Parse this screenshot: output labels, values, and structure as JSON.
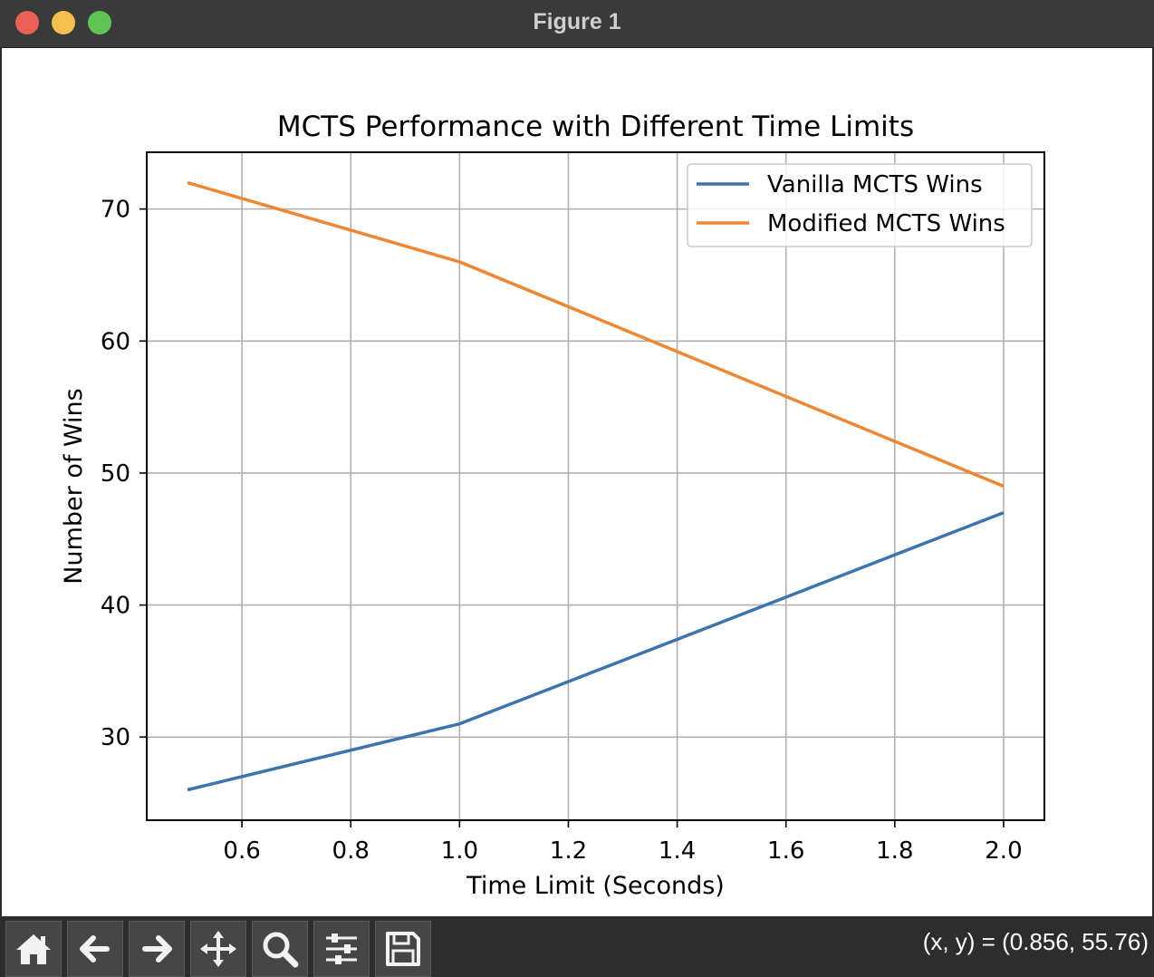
{
  "window": {
    "title": "Figure 1"
  },
  "toolbar": {
    "buttons": [
      {
        "name": "home-button",
        "icon": "home-icon"
      },
      {
        "name": "back-button",
        "icon": "arrow-left-icon"
      },
      {
        "name": "forward-button",
        "icon": "arrow-right-icon"
      },
      {
        "name": "pan-button",
        "icon": "move-icon"
      },
      {
        "name": "zoom-button",
        "icon": "magnifier-icon"
      },
      {
        "name": "configure-subplots-button",
        "icon": "sliders-icon"
      },
      {
        "name": "save-button",
        "icon": "floppy-disk-icon"
      }
    ],
    "coords": "(x, y) = (0.856, 55.76)"
  },
  "chart_data": {
    "type": "line",
    "title": "MCTS Performance with Different Time Limits",
    "xlabel": "Time Limit (Seconds)",
    "ylabel": "Number of Wins",
    "x": [
      0.5,
      1.0,
      2.0
    ],
    "series": [
      {
        "name": "Vanilla MCTS Wins",
        "values": [
          26,
          31,
          47
        ],
        "color": "#3d74ae"
      },
      {
        "name": "Modified MCTS Wins",
        "values": [
          72,
          66,
          49
        ],
        "color": "#ee8734"
      }
    ],
    "xlim": [
      0.425,
      2.075
    ],
    "ylim": [
      23.7,
      74.3
    ],
    "xticks": [
      0.6,
      0.8,
      1.0,
      1.2,
      1.4,
      1.6,
      1.8,
      2.0
    ],
    "xtick_labels": [
      "0.6",
      "0.8",
      "1.0",
      "1.2",
      "1.4",
      "1.6",
      "1.8",
      "2.0"
    ],
    "yticks": [
      30,
      40,
      50,
      60,
      70
    ],
    "ytick_labels": [
      "30",
      "40",
      "50",
      "60",
      "70"
    ],
    "grid": true,
    "legend": "top-right"
  }
}
